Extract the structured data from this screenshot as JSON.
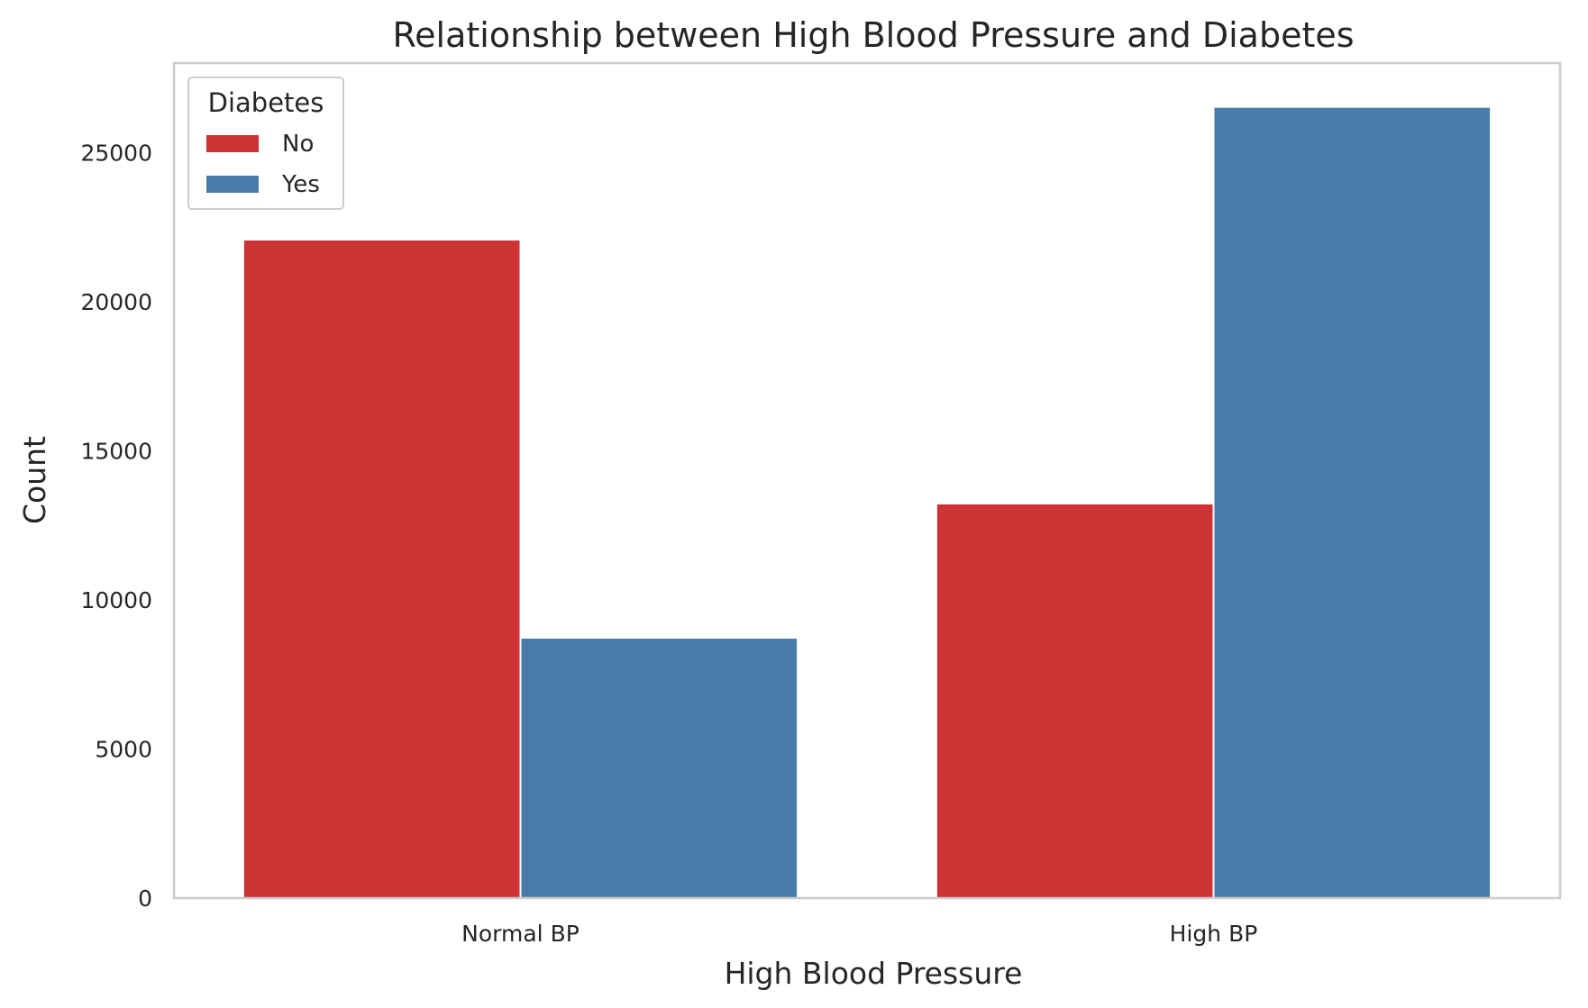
{
  "chart_data": {
    "type": "bar",
    "title": "Relationship between High Blood Pressure and Diabetes",
    "xlabel": "High Blood Pressure",
    "ylabel": "Count",
    "categories": [
      "Normal BP",
      "High BP"
    ],
    "series": [
      {
        "name": "No",
        "color": "#cd3235",
        "values": [
          22050,
          13200
        ]
      },
      {
        "name": "Yes",
        "color": "#477ca8",
        "values": [
          8700,
          26500
        ]
      }
    ],
    "ylim": [
      0,
      28000
    ],
    "yticks": [
      0,
      5000,
      10000,
      15000,
      20000,
      25000
    ],
    "grid": false,
    "legend": {
      "title": "Diabetes",
      "position": "top-left"
    }
  }
}
